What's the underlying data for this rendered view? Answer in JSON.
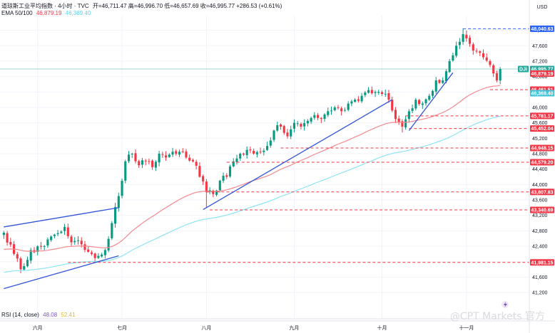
{
  "legend": {
    "title": "道琼斯工业平均指数 · 4小时 · TVC",
    "ohlc": "开=46,711.47  高=46,996.70  低=46,657.69  收=46,995.77  +286.53 (+0.61%)",
    "ema_label": "EMA 50/100",
    "ema50_value": "46,879.19",
    "ema100_value": "46,369.40",
    "rsi_label": "RSI (14, close)",
    "rsi_value": "48.08",
    "rsi_ma_value": "52.41"
  },
  "price_axis": {
    "currency": "USD"
  },
  "watermark": "@CPT Markets 官方",
  "colors": {
    "up": "#089981",
    "down": "#f23645",
    "ema50": "#f5898f",
    "ema100": "#8ee4f5",
    "trendline": "#3154d9",
    "level": "#f23645",
    "level_ref": "#2962ff",
    "last_price": "#26a69a",
    "grid": "#f0f3fa",
    "rsi_line": "#7e57c2",
    "rsi_ma": "#f5d76e"
  },
  "chart_data": {
    "type": "candlestick",
    "title": "道琼斯工业平均指数 · 4小时 · TVC",
    "ylabel": "USD",
    "ylim": [
      40850,
      48380
    ],
    "y_ticks": [
      41200,
      41600,
      42000,
      42400,
      42800,
      43200,
      43600,
      44000,
      44400,
      44800,
      45200,
      45600,
      46000,
      46400,
      46800,
      47200,
      47600,
      48000
    ],
    "x_ticks": [
      {
        "label": "六月",
        "index": 10
      },
      {
        "label": "七月",
        "index": 35
      },
      {
        "label": "八月",
        "index": 60
      },
      {
        "label": "九月",
        "index": 86
      },
      {
        "label": "十月",
        "index": 112
      },
      {
        "label": "十一月",
        "index": 137
      }
    ],
    "candle_count": 150,
    "close_anchors": [
      [
        0,
        42750
      ],
      [
        3,
        42200
      ],
      [
        5,
        41800
      ],
      [
        8,
        42300
      ],
      [
        12,
        42400
      ],
      [
        15,
        42700
      ],
      [
        18,
        42900
      ],
      [
        20,
        42500
      ],
      [
        23,
        42450
      ],
      [
        26,
        42200
      ],
      [
        28,
        42150
      ],
      [
        30,
        42300
      ],
      [
        32,
        43000
      ],
      [
        34,
        43700
      ],
      [
        36,
        44600
      ],
      [
        38,
        44800
      ],
      [
        40,
        44500
      ],
      [
        42,
        44600
      ],
      [
        44,
        44450
      ],
      [
        46,
        44800
      ],
      [
        48,
        44700
      ],
      [
        50,
        44850
      ],
      [
        52,
        44850
      ],
      [
        54,
        44700
      ],
      [
        56,
        44600
      ],
      [
        58,
        44200
      ],
      [
        60,
        43800
      ],
      [
        62,
        43750
      ],
      [
        64,
        44100
      ],
      [
        66,
        44200
      ],
      [
        68,
        44600
      ],
      [
        70,
        44800
      ],
      [
        72,
        44900
      ],
      [
        74,
        44800
      ],
      [
        76,
        44850
      ],
      [
        78,
        45000
      ],
      [
        80,
        45400
      ],
      [
        82,
        45500
      ],
      [
        84,
        45250
      ],
      [
        86,
        45600
      ],
      [
        88,
        45500
      ],
      [
        90,
        45650
      ],
      [
        92,
        45800
      ],
      [
        94,
        45700
      ],
      [
        96,
        45900
      ],
      [
        98,
        46000
      ],
      [
        100,
        45900
      ],
      [
        102,
        46100
      ],
      [
        104,
        46200
      ],
      [
        106,
        46300
      ],
      [
        108,
        46450
      ],
      [
        110,
        46400
      ],
      [
        112,
        46350
      ],
      [
        114,
        46200
      ],
      [
        116,
        45700
      ],
      [
        118,
        45500
      ],
      [
        120,
        45900
      ],
      [
        122,
        46200
      ],
      [
        124,
        46100
      ],
      [
        126,
        46300
      ],
      [
        128,
        46700
      ],
      [
        130,
        46700
      ],
      [
        132,
        47200
      ],
      [
        134,
        47600
      ],
      [
        136,
        47900
      ],
      [
        138,
        47650
      ],
      [
        140,
        47450
      ],
      [
        142,
        47300
      ],
      [
        144,
        47100
      ],
      [
        146,
        46700
      ],
      [
        147,
        46995.77
      ]
    ],
    "extremes": [
      {
        "index": 5,
        "type": "low",
        "price": 41700
      },
      {
        "index": 60,
        "type": "low",
        "price": 43400
      },
      {
        "index": 118,
        "type": "low",
        "price": 45350
      },
      {
        "index": 136,
        "type": "high",
        "price": 48050
      }
    ],
    "last_price": 46995.77,
    "labels": [
      {
        "price": 48040.63,
        "text": "48,040.63",
        "kind": "ref"
      },
      {
        "price": 46995.77,
        "text": "46,995.77",
        "kind": "last",
        "tag": "DJI"
      },
      {
        "price": 46879.19,
        "text": "46,879.19",
        "kind": "ema50"
      },
      {
        "price": 46461.51,
        "text": "46,461.51",
        "kind": "level"
      },
      {
        "price": 46369.4,
        "text": "46,369.40",
        "kind": "ema100"
      },
      {
        "price": 45781.17,
        "text": "45,781.17",
        "kind": "level"
      },
      {
        "price": 45452.04,
        "text": "45,452.04",
        "kind": "level"
      },
      {
        "price": 44948.15,
        "text": "44,948.15",
        "kind": "level"
      },
      {
        "price": 44579.2,
        "text": "44,579.20",
        "kind": "level"
      },
      {
        "price": 43807.83,
        "text": "43,807.83",
        "kind": "level"
      },
      {
        "price": 43340.69,
        "text": "43,340.69",
        "kind": "level"
      },
      {
        "price": 41981.15,
        "text": "41,981.15",
        "kind": "level"
      }
    ],
    "trendlines": [
      {
        "from": [
          0,
          42900
        ],
        "to": [
          34,
          43400
        ]
      },
      {
        "from": [
          0,
          41300
        ],
        "to": [
          34,
          42150
        ]
      },
      {
        "from": [
          59,
          43350
        ],
        "to": [
          115,
          46200
        ]
      },
      {
        "from": [
          120,
          45400
        ],
        "to": [
          133,
          46900
        ]
      }
    ],
    "level_segments": [
      {
        "price": 48040.63,
        "from": 136,
        "kind": "ref"
      },
      {
        "price": 46461.51,
        "from": 144,
        "kind": "level"
      },
      {
        "price": 45781.17,
        "from": 119,
        "kind": "level"
      },
      {
        "price": 45452.04,
        "from": 120,
        "kind": "level"
      },
      {
        "price": 44948.15,
        "from": 82,
        "kind": "level"
      },
      {
        "price": 44579.2,
        "from": 66,
        "kind": "level"
      },
      {
        "price": 43807.83,
        "from": 60,
        "kind": "level"
      },
      {
        "price": 43340.69,
        "from": 61,
        "kind": "level"
      },
      {
        "price": 41981.15,
        "from": 19,
        "kind": "level"
      }
    ],
    "ema_series": [
      {
        "name": "EMA 50",
        "period": 50,
        "start_value": 42300
      },
      {
        "name": "EMA 100",
        "period": 100,
        "start_value": 41700
      }
    ]
  }
}
